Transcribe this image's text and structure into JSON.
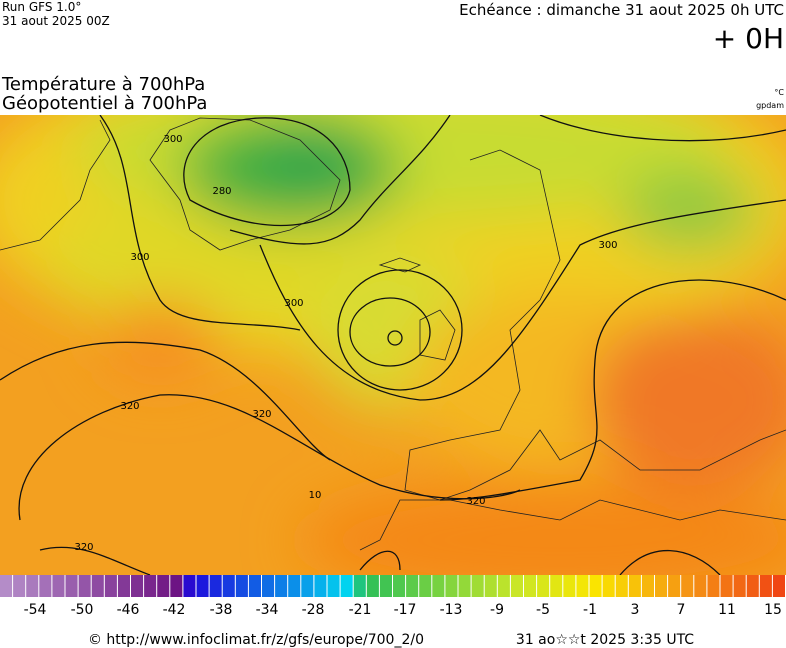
{
  "header": {
    "run": "Run GFS 1.0°",
    "run_date": "31 aout 2025 00Z",
    "forecast": "Echéance : dimanche 31 aout 2025 0h UTC",
    "offset": "+ 0H",
    "title_1": "Température à 700hPa",
    "title_2": "Géopotentiel à 700hPa",
    "unit_1": "°C",
    "unit_2": "gpdam"
  },
  "map": {
    "contour_labels": [
      "300",
      "280",
      "300",
      "300",
      "300",
      "320",
      "320",
      "320",
      "320",
      "10"
    ]
  },
  "scale": {
    "labels": [
      "-54",
      "-50",
      "-46",
      "-42",
      "-38",
      "-34",
      "-28",
      "-21",
      "-17",
      "-13",
      "-9",
      "-5",
      "-1",
      "3",
      "7",
      "11",
      "15"
    ]
  },
  "footer": {
    "url": "© http://www.infoclimat.fr/z/gfs/europe/700_2/0",
    "generated": "31 ao☆☆t 2025  3:35 UTC"
  }
}
